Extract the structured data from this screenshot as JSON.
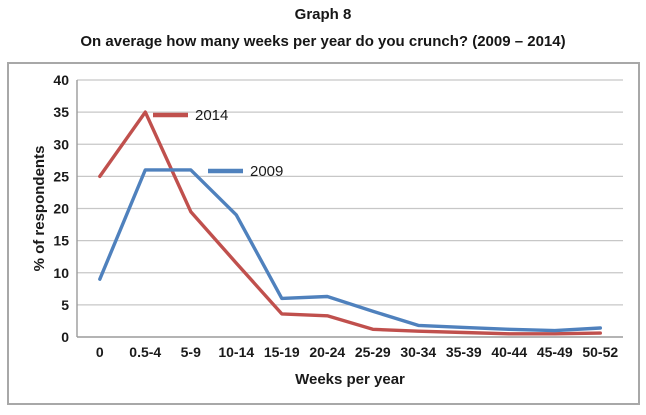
{
  "header": {
    "title": "Graph 8",
    "subtitle": "On average how many weeks per year do you crunch? (2009 – 2014)"
  },
  "chart_data": {
    "type": "line",
    "title": "Graph 8",
    "subtitle": "On average how many weeks per year do you crunch? (2009 – 2014)",
    "categories": [
      "0",
      "0.5-4",
      "5-9",
      "10-14",
      "15-19",
      "20-24",
      "25-29",
      "30-34",
      "35-39",
      "40-44",
      "45-49",
      "50-52"
    ],
    "series": [
      {
        "name": "2014",
        "color": "#C0504D",
        "values": [
          25,
          35,
          19.5,
          11.5,
          3.6,
          3.3,
          1.2,
          0.9,
          0.7,
          0.5,
          0.5,
          0.6
        ]
      },
      {
        "name": "2009",
        "color": "#4F81BD",
        "values": [
          9,
          26,
          26,
          19,
          6,
          6.3,
          4,
          1.8,
          1.5,
          1.2,
          1,
          1.4
        ]
      }
    ],
    "xlabel": "Weeks per year",
    "ylabel": "% of respondents",
    "ylim": [
      0,
      40
    ],
    "ytick_step": 5,
    "grid": true,
    "legend_position": "inline-near-lines",
    "colors": {
      "gridline": "#c7c7c7",
      "axis_line": "#9b9b9b",
      "frame_border": "#a8a8a8",
      "text": "#1a1a1a",
      "background": "#ffffff"
    }
  }
}
